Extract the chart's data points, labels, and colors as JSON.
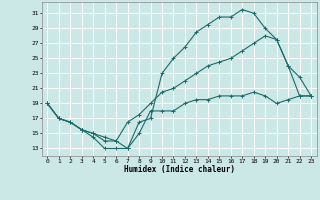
{
  "xlabel": "Humidex (Indice chaleur)",
  "bg_color": "#cce8e6",
  "grid_color": "#ffffff",
  "line_color": "#1a6b6b",
  "xlim": [
    -0.5,
    23.5
  ],
  "ylim": [
    12,
    32.5
  ],
  "yticks": [
    13,
    15,
    17,
    19,
    21,
    23,
    25,
    27,
    29,
    31
  ],
  "xticks": [
    0,
    1,
    2,
    3,
    4,
    5,
    6,
    7,
    8,
    9,
    10,
    11,
    12,
    13,
    14,
    15,
    16,
    17,
    18,
    19,
    20,
    21,
    22,
    23
  ],
  "series1_x": [
    0,
    1,
    2,
    3,
    4,
    5,
    6,
    7,
    8,
    9,
    10,
    11,
    12,
    13,
    14,
    15,
    16,
    17,
    18,
    19,
    20,
    21,
    22,
    23
  ],
  "series1_y": [
    19,
    17,
    16.5,
    15.5,
    14.5,
    13,
    13,
    13,
    15,
    18,
    18,
    18,
    19,
    19.5,
    19.5,
    20,
    20,
    20,
    20.5,
    20,
    19,
    19.5,
    20,
    20
  ],
  "series2_x": [
    0,
    1,
    2,
    3,
    4,
    5,
    6,
    7,
    8,
    9,
    10,
    11,
    12,
    13,
    14,
    15,
    16,
    17,
    18,
    19,
    20,
    21,
    22,
    23
  ],
  "series2_y": [
    19,
    17,
    16.5,
    15.5,
    15,
    14,
    14,
    13,
    16.5,
    17,
    23,
    25,
    26.5,
    28.5,
    29.5,
    30.5,
    30.5,
    31.5,
    31,
    29,
    27.5,
    24,
    22.5,
    20
  ],
  "series3_x": [
    0,
    1,
    2,
    3,
    4,
    5,
    6,
    7,
    8,
    9,
    10,
    11,
    12,
    13,
    14,
    15,
    16,
    17,
    18,
    19,
    20,
    21,
    22,
    23
  ],
  "series3_y": [
    19,
    17,
    16.5,
    15.5,
    15,
    14.5,
    14,
    16.5,
    17.5,
    19,
    20.5,
    21,
    22,
    23,
    24,
    24.5,
    25,
    26,
    27,
    28,
    27.5,
    24,
    20,
    20
  ]
}
